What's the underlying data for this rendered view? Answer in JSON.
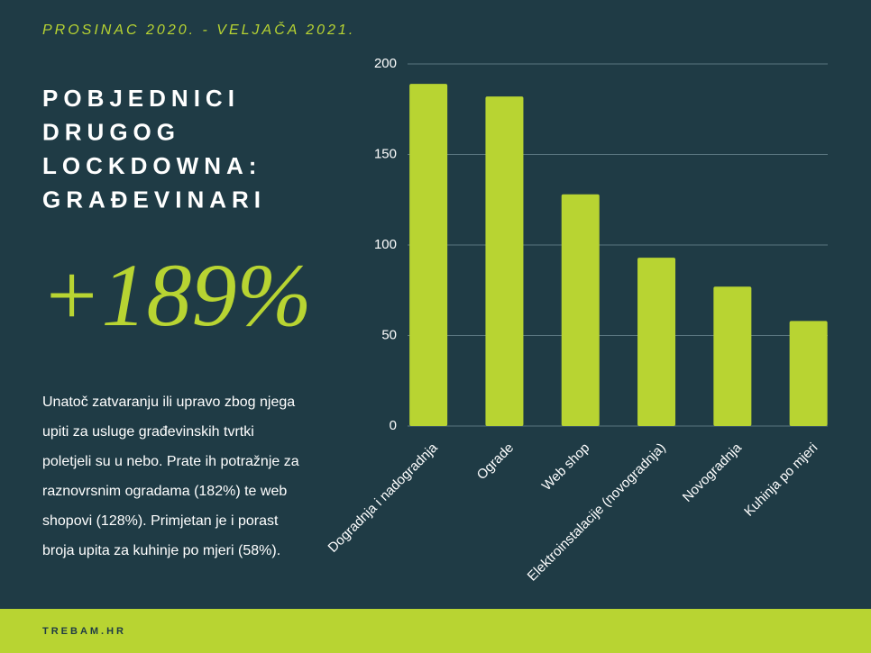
{
  "date_range": "PROSINAC 2020. - VELJAČA 2021.",
  "headline": [
    "POBJEDNICI",
    "DRUGOG",
    "LOCKDOWNA:",
    "GRAĐEVINARI"
  ],
  "big_stat": "+189%",
  "body": [
    "Unatoč zatvaranju ili upravo zbog njega",
    "upiti za usluge građevinskih tvrtki",
    "poletjeli su u nebo. Prate ih potražnje za",
    "raznovrsnim ogradama (182%) te web",
    "shopovi (128%). Primjetan je i porast",
    "broja upita za kuhinje po mjeri (58%)."
  ],
  "footer": "TREBAM.HR",
  "chart_data": {
    "type": "bar",
    "categories": [
      "Dogradnja i nadogradnja",
      "Ograde",
      "Web shop",
      "Elektroinstalacije (novogradnja)",
      "Novogradnja",
      "Kuhinja po mjeri"
    ],
    "values": [
      189,
      182,
      128,
      93,
      77,
      58
    ],
    "color": "#b8d432",
    "ylim": [
      0,
      200
    ],
    "yticks": [
      0,
      50,
      100,
      150,
      200
    ],
    "grid": true
  }
}
